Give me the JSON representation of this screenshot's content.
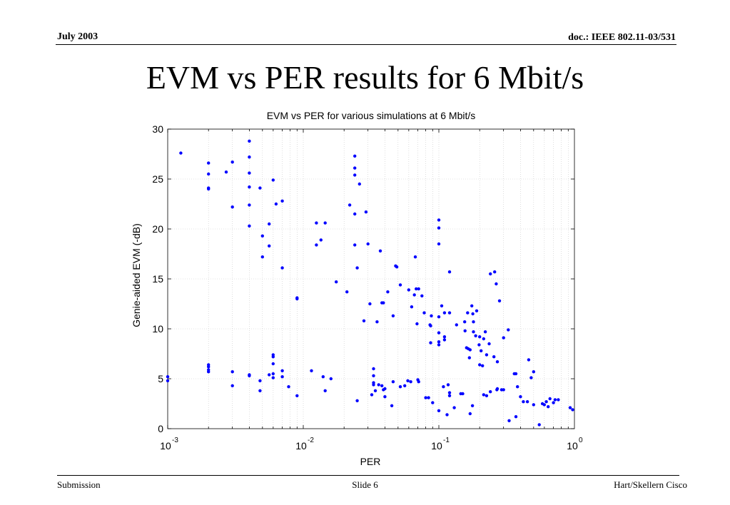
{
  "slide": {
    "date": "July 2003",
    "doc_ref": "doc.: IEEE 802.11-03/531",
    "title": "EVM vs PER results for 6 Mbit/s",
    "footer_left": "Submission",
    "footer_center": "Slide 6",
    "footer_right": "Hart/Skellern Cisco"
  },
  "chart_data": {
    "type": "scatter",
    "title": "EVM vs PER for various simulations at 6 Mbit/s",
    "xlabel": "PER",
    "ylabel": "Genie-aided EVM (-dB)",
    "x_scale": "log",
    "xlim": [
      0.001,
      1
    ],
    "ylim": [
      0,
      30
    ],
    "x_ticks": [
      0.001,
      0.01,
      0.1,
      1
    ],
    "x_tick_labels": [
      {
        "base": "10",
        "exp": "-3"
      },
      {
        "base": "10",
        "exp": "-2"
      },
      {
        "base": "10",
        "exp": "-1"
      },
      {
        "base": "10",
        "exp": "0"
      }
    ],
    "y_ticks": [
      0,
      5,
      10,
      15,
      20,
      25,
      30
    ],
    "grid": true,
    "marker_color": "#0000ff",
    "series": [
      {
        "points": [
          [
            0.001,
            5.2
          ],
          [
            0.001,
            4.8
          ],
          [
            0.00125,
            27.6
          ],
          [
            0.002,
            26.6
          ],
          [
            0.002,
            25.5
          ],
          [
            0.002,
            24.1
          ],
          [
            0.002,
            24.0
          ],
          [
            0.002,
            6.4
          ],
          [
            0.002,
            6.2
          ],
          [
            0.002,
            5.9
          ],
          [
            0.002,
            5.7
          ],
          [
            0.0027,
            25.7
          ],
          [
            0.003,
            26.7
          ],
          [
            0.003,
            22.2
          ],
          [
            0.003,
            5.7
          ],
          [
            0.003,
            4.3
          ],
          [
            0.004,
            28.8
          ],
          [
            0.004,
            27.2
          ],
          [
            0.004,
            25.6
          ],
          [
            0.004,
            24.2
          ],
          [
            0.004,
            22.4
          ],
          [
            0.004,
            20.3
          ],
          [
            0.004,
            5.4
          ],
          [
            0.004,
            5.3
          ],
          [
            0.0048,
            24.1
          ],
          [
            0.0048,
            4.8
          ],
          [
            0.0048,
            3.8
          ],
          [
            0.005,
            19.3
          ],
          [
            0.005,
            17.2
          ],
          [
            0.0056,
            20.5
          ],
          [
            0.0056,
            18.3
          ],
          [
            0.0056,
            5.4
          ],
          [
            0.006,
            24.9
          ],
          [
            0.006,
            7.4
          ],
          [
            0.006,
            7.2
          ],
          [
            0.006,
            6.5
          ],
          [
            0.006,
            5.5
          ],
          [
            0.006,
            5.1
          ],
          [
            0.0063,
            22.5
          ],
          [
            0.007,
            22.8
          ],
          [
            0.007,
            16.1
          ],
          [
            0.007,
            5.8
          ],
          [
            0.007,
            5.2
          ],
          [
            0.0078,
            4.2
          ],
          [
            0.009,
            13.1
          ],
          [
            0.009,
            13.0
          ],
          [
            0.009,
            3.3
          ],
          [
            0.0115,
            5.8
          ],
          [
            0.0125,
            20.6
          ],
          [
            0.0125,
            18.4
          ],
          [
            0.0135,
            18.9
          ],
          [
            0.014,
            5.2
          ],
          [
            0.0145,
            20.6
          ],
          [
            0.0145,
            3.8
          ],
          [
            0.016,
            5.0
          ],
          [
            0.0175,
            14.7
          ],
          [
            0.021,
            13.7
          ],
          [
            0.022,
            22.4
          ],
          [
            0.024,
            27.3
          ],
          [
            0.024,
            26.1
          ],
          [
            0.024,
            25.4
          ],
          [
            0.024,
            21.5
          ],
          [
            0.024,
            18.4
          ],
          [
            0.026,
            24.5
          ],
          [
            0.025,
            16.1
          ],
          [
            0.025,
            2.8
          ],
          [
            0.028,
            10.8
          ],
          [
            0.029,
            21.7
          ],
          [
            0.03,
            18.5
          ],
          [
            0.031,
            12.5
          ],
          [
            0.033,
            6.0
          ],
          [
            0.033,
            5.3
          ],
          [
            0.033,
            4.6
          ],
          [
            0.033,
            4.4
          ],
          [
            0.032,
            3.4
          ],
          [
            0.034,
            3.8
          ],
          [
            0.035,
            10.7
          ],
          [
            0.036,
            4.4
          ],
          [
            0.037,
            17.8
          ],
          [
            0.038,
            12.6
          ],
          [
            0.038,
            4.3
          ],
          [
            0.039,
            12.6
          ],
          [
            0.039,
            3.9
          ],
          [
            0.04,
            4.0
          ],
          [
            0.04,
            3.2
          ],
          [
            0.042,
            13.7
          ],
          [
            0.046,
            11.3
          ],
          [
            0.046,
            4.7
          ],
          [
            0.045,
            2.3
          ],
          [
            0.048,
            16.3
          ],
          [
            0.049,
            16.2
          ],
          [
            0.052,
            14.4
          ],
          [
            0.052,
            4.2
          ],
          [
            0.056,
            4.3
          ],
          [
            0.06,
            13.9
          ],
          [
            0.059,
            4.8
          ],
          [
            0.062,
            4.7
          ],
          [
            0.063,
            12.2
          ],
          [
            0.066,
            13.4
          ],
          [
            0.067,
            17.2
          ],
          [
            0.068,
            14.0
          ],
          [
            0.071,
            14.0
          ],
          [
            0.07,
            4.9
          ],
          [
            0.071,
            4.7
          ],
          [
            0.069,
            10.5
          ],
          [
            0.075,
            13.3
          ],
          [
            0.078,
            11.6
          ],
          [
            0.08,
            3.1
          ],
          [
            0.086,
            10.4
          ],
          [
            0.087,
            10.3
          ],
          [
            0.087,
            8.6
          ],
          [
            0.084,
            3.1
          ],
          [
            0.088,
            11.3
          ],
          [
            0.09,
            2.6
          ],
          [
            0.1,
            20.9
          ],
          [
            0.1,
            20.1
          ],
          [
            0.1,
            18.5
          ],
          [
            0.1,
            11.2
          ],
          [
            0.1,
            9.6
          ],
          [
            0.1,
            8.7
          ],
          [
            0.1,
            8.4
          ],
          [
            0.1,
            1.8
          ],
          [
            0.105,
            12.3
          ],
          [
            0.11,
            11.6
          ],
          [
            0.108,
            4.2
          ],
          [
            0.11,
            9.2
          ],
          [
            0.11,
            8.9
          ],
          [
            0.117,
            4.4
          ],
          [
            0.12,
            15.7
          ],
          [
            0.12,
            11.6
          ],
          [
            0.12,
            3.6
          ],
          [
            0.12,
            3.3
          ],
          [
            0.115,
            1.4
          ],
          [
            0.135,
            10.4
          ],
          [
            0.13,
            2.1
          ],
          [
            0.145,
            3.5
          ],
          [
            0.15,
            3.5
          ],
          [
            0.156,
            9.8
          ],
          [
            0.155,
            10.7
          ],
          [
            0.163,
            11.6
          ],
          [
            0.16,
            8.1
          ],
          [
            0.165,
            8.0
          ],
          [
            0.168,
            7.1
          ],
          [
            0.17,
            7.9
          ],
          [
            0.175,
            12.3
          ],
          [
            0.178,
            11.5
          ],
          [
            0.18,
            10.7
          ],
          [
            0.17,
            1.5
          ],
          [
            0.177,
            2.3
          ],
          [
            0.18,
            9.7
          ],
          [
            0.19,
            11.8
          ],
          [
            0.187,
            9.3
          ],
          [
            0.198,
            8.4
          ],
          [
            0.2,
            9.2
          ],
          [
            0.2,
            6.4
          ],
          [
            0.205,
            7.8
          ],
          [
            0.214,
            9.0
          ],
          [
            0.21,
            6.3
          ],
          [
            0.214,
            3.4
          ],
          [
            0.22,
            9.7
          ],
          [
            0.225,
            7.4
          ],
          [
            0.225,
            3.3
          ],
          [
            0.24,
            15.5
          ],
          [
            0.24,
            3.7
          ],
          [
            0.235,
            8.5
          ],
          [
            0.258,
            15.7
          ],
          [
            0.265,
            14.5
          ],
          [
            0.268,
            3.9
          ],
          [
            0.255,
            7.2
          ],
          [
            0.27,
            6.7
          ],
          [
            0.27,
            4.0
          ],
          [
            0.28,
            12.8
          ],
          [
            0.29,
            3.9
          ],
          [
            0.3,
            9.1
          ],
          [
            0.3,
            3.9
          ],
          [
            0.325,
            9.9
          ],
          [
            0.33,
            0.8
          ],
          [
            0.36,
            5.5
          ],
          [
            0.37,
            5.5
          ],
          [
            0.37,
            1.2
          ],
          [
            0.38,
            4.2
          ],
          [
            0.4,
            3.2
          ],
          [
            0.42,
            2.7
          ],
          [
            0.45,
            2.7
          ],
          [
            0.46,
            6.9
          ],
          [
            0.48,
            5.1
          ],
          [
            0.5,
            5.7
          ],
          [
            0.5,
            2.4
          ],
          [
            0.55,
            0.4
          ],
          [
            0.58,
            2.5
          ],
          [
            0.6,
            2.4
          ],
          [
            0.62,
            2.7
          ],
          [
            0.64,
            2.2
          ],
          [
            0.66,
            3.0
          ],
          [
            0.7,
            2.6
          ],
          [
            0.72,
            2.9
          ],
          [
            0.76,
            2.9
          ],
          [
            0.93,
            2.1
          ],
          [
            0.97,
            1.9
          ]
        ]
      }
    ]
  }
}
